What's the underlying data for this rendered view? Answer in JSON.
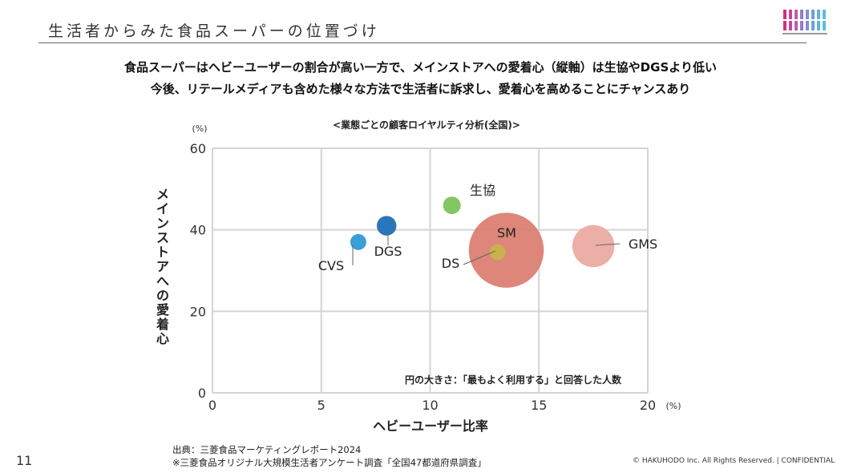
{
  "slide": {
    "title": "生活者からみた食品スーパーの位置づけ",
    "headline1": "食品スーパーはヘビーユーザーの割合が高い一方で、メインストアへの愛着心（縦軸）は生協やDGSより低い",
    "headline2": "今後、リテールメディアも含めた様々な方法で生活者に訴求し、愛着心を高めることにチャンスあり",
    "page_number": "11",
    "source_line1": "出典：三菱食品マーケティングレポート2024",
    "source_line2": "※三菱食品オリジナル大規模生活者アンケート調査「全国47都道府県調査」",
    "copyright": "© HAKUHODO Inc. All Rights Reserved. | CONFIDENTIAL",
    "logo_bar_colors": [
      "#d0307c",
      "#c9449a",
      "#b65fb6",
      "#9a79c8",
      "#7f90d2",
      "#6aa2d6",
      "#62b1d8",
      "#5cbfd8"
    ]
  },
  "chart_data": {
    "type": "scatter",
    "title": "<業態ごとの顧客ロイヤルティ分析(全国)>",
    "xlabel": "ヘビーユーザー比率",
    "ylabel": "メインストアへの愛着心",
    "x_unit": "(%)",
    "y_unit": "(%)",
    "xlim": [
      0,
      20
    ],
    "ylim": [
      0,
      60
    ],
    "xticks": [
      0,
      5,
      10,
      15,
      20
    ],
    "yticks": [
      0,
      20,
      40,
      60
    ],
    "grid": true,
    "size_note": "円の大きさ：「最もよく利用する」と回答した人数",
    "points": [
      {
        "name": "CVS",
        "x": 6.7,
        "y": 37,
        "size": 1.0,
        "color": "#2f9ad6"
      },
      {
        "name": "DGS",
        "x": 8.0,
        "y": 41,
        "size": 1.5,
        "color": "#1f6fb6"
      },
      {
        "name": "生協",
        "x": 11.0,
        "y": 46,
        "size": 1.2,
        "color": "#7dc35a"
      },
      {
        "name": "SM",
        "x": 13.5,
        "y": 35,
        "size": 4.6,
        "color": "#db7f72"
      },
      {
        "name": "DS",
        "x": 13.1,
        "y": 34.5,
        "size": 1.0,
        "color": "#c9b24a"
      },
      {
        "name": "GMS",
        "x": 17.5,
        "y": 36,
        "size": 2.7,
        "color": "#ebaba2"
      }
    ]
  }
}
